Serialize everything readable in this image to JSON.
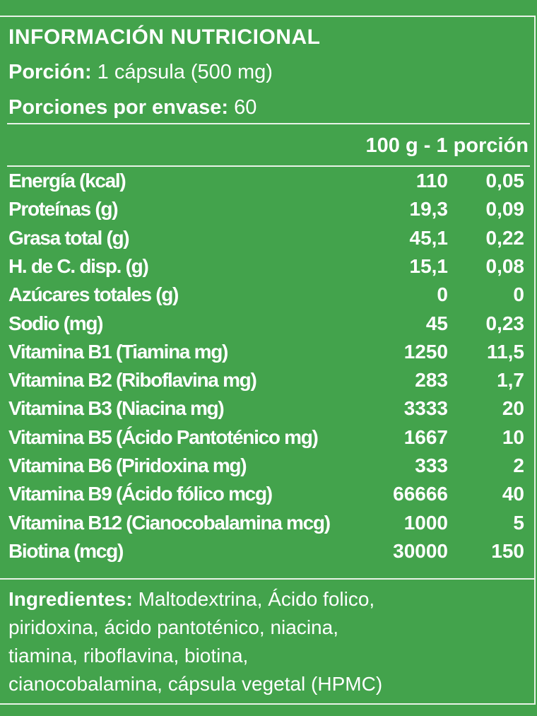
{
  "panel": {
    "title": "INFORMACIÓN NUTRICIONAL",
    "portion_label": "Porción:",
    "portion_value": " 1 cápsula (500 mg)",
    "servings_label": "Porciones por envase:",
    "servings_value": " 60",
    "column_header": "100 g - 1 porción"
  },
  "rows": [
    {
      "label": "Energía (kcal)",
      "per100": "110",
      "portion": "0,05"
    },
    {
      "label": "Proteínas (g)",
      "per100": "19,3",
      "portion": "0,09"
    },
    {
      "label": "Grasa total (g)",
      "per100": "45,1",
      "portion": "0,22"
    },
    {
      "label": "H. de C. disp. (g)",
      "per100": "15,1",
      "portion": "0,08"
    },
    {
      "label": "Azúcares totales (g)",
      "per100": "0",
      "portion": "0"
    },
    {
      "label": "Sodio (mg)",
      "per100": "45",
      "portion": "0,23"
    },
    {
      "label": "Vitamina B1 (Tiamina mg)",
      "per100": "1250",
      "portion": "11,5"
    },
    {
      "label": "Vitamina B2 (Riboflavina mg)",
      "per100": "283",
      "portion": "1,7"
    },
    {
      "label": "Vitamina B3 (Niacina mg)",
      "per100": "3333",
      "portion": "20"
    },
    {
      "label": "Vitamina B5 (Ácido Pantoténico mg)",
      "per100": "1667",
      "portion": "10"
    },
    {
      "label": "Vitamina B6 (Piridoxina mg)",
      "per100": "333",
      "portion": "2"
    },
    {
      "label": "Vitamina B9 (Ácido fólico mcg)",
      "per100": "66666",
      "portion": "40"
    },
    {
      "label": "Vitamina B12 (Cianocobalamina mcg)",
      "per100": "1000",
      "portion": "5"
    },
    {
      "label": "Biotina (mcg)",
      "per100": "30000",
      "portion": "150"
    }
  ],
  "ingredients": {
    "label": "Ingredientes:",
    "text": " Maltodextrina, Ácido folico,\npiridoxina, ácido pantoténico, niacina,\n tiamina, riboflavina, biotina,\ncianocobalamina, cápsula vegetal (HPMC)"
  },
  "colors": {
    "background": "#43a34c",
    "text": "#ffffff"
  }
}
